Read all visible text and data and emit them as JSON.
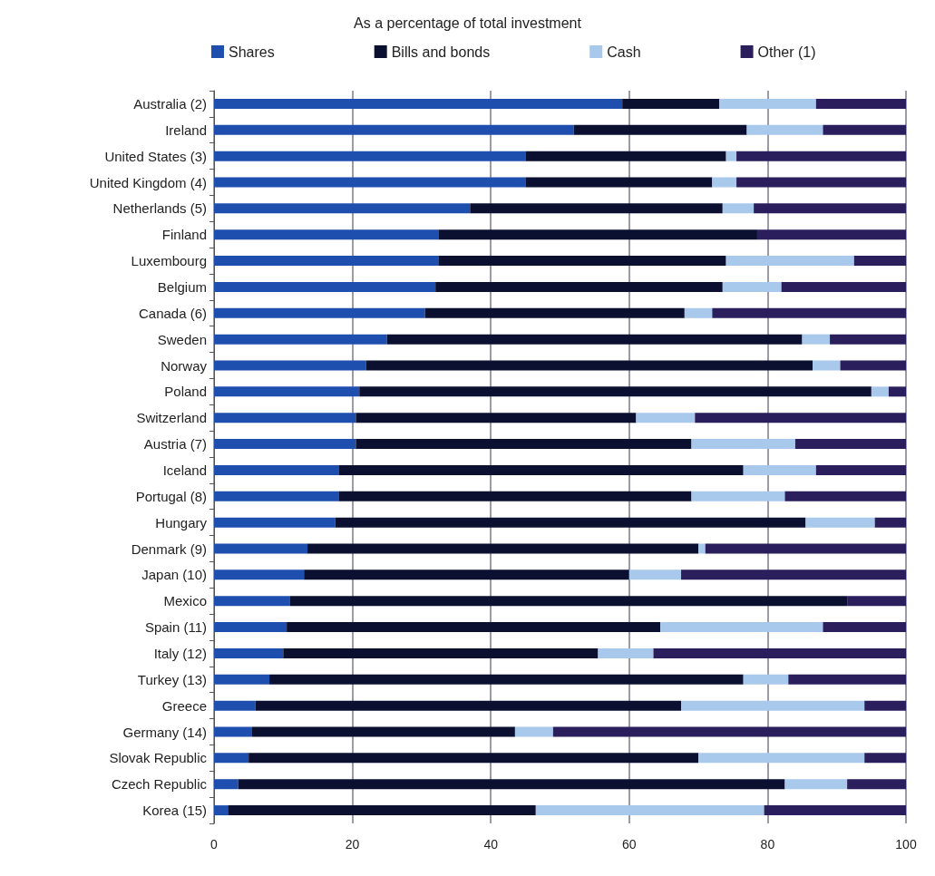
{
  "chart_data": {
    "type": "bar",
    "orientation": "horizontal",
    "stacked": true,
    "title": "As a percentage of total investment",
    "categories": [
      "Australia (2)",
      "Ireland",
      "United States (3)",
      "United Kingdom (4)",
      "Netherlands (5)",
      "Finland",
      "Luxembourg",
      "Belgium",
      "Canada (6)",
      "Sweden",
      "Norway",
      "Poland",
      "Switzerland",
      "Austria (7)",
      "Iceland",
      "Portugal (8)",
      "Hungary",
      "Denmark (9)",
      "Japan (10)",
      "Mexico",
      "Spain (11)",
      "Italy (12)",
      "Turkey (13)",
      "Greece",
      "Germany (14)",
      "Slovak Republic",
      "Czech Republic",
      "Korea (15)"
    ],
    "series": [
      {
        "name": "Shares",
        "color": "#1f4fae",
        "values": [
          59,
          52,
          45,
          45,
          37,
          32.5,
          32.5,
          32,
          30.5,
          25,
          22,
          21,
          20.5,
          20.5,
          18,
          18,
          17.5,
          13.5,
          13,
          11,
          10.5,
          10,
          8,
          6,
          5.5,
          5,
          3.5,
          2
        ]
      },
      {
        "name": "Bills and bonds",
        "color": "#0b1030",
        "values": [
          14,
          25,
          29,
          27,
          36.5,
          46,
          41.5,
          41.5,
          37.5,
          60,
          64.5,
          74,
          40.5,
          48.5,
          58.5,
          51,
          68,
          56.5,
          47,
          80.5,
          54,
          45.5,
          68.5,
          61.5,
          38,
          65,
          79,
          44.5
        ]
      },
      {
        "name": "Cash",
        "color": "#a8c8ec",
        "values": [
          14,
          11,
          1.5,
          3.5,
          4.5,
          0,
          18.5,
          8.5,
          4,
          4,
          4,
          2.5,
          8.5,
          15,
          10.5,
          13.5,
          10,
          1,
          7.5,
          0,
          23.5,
          8,
          6.5,
          26.5,
          5.5,
          24,
          9,
          33
        ]
      },
      {
        "name": "Other (1)",
        "color": "#2a1f5c",
        "values": [
          13,
          12,
          24.5,
          24.5,
          22,
          21.5,
          7.5,
          18,
          28,
          11,
          9.5,
          2.5,
          30.5,
          16,
          13,
          17.5,
          4.5,
          29,
          32.5,
          8.5,
          12,
          36.5,
          17,
          6,
          51,
          6,
          8.5,
          20.5
        ]
      }
    ],
    "xlim": [
      0,
      100
    ],
    "xticks": [
      0,
      20,
      40,
      60,
      80,
      100
    ],
    "grid": "x",
    "legend": "top"
  }
}
